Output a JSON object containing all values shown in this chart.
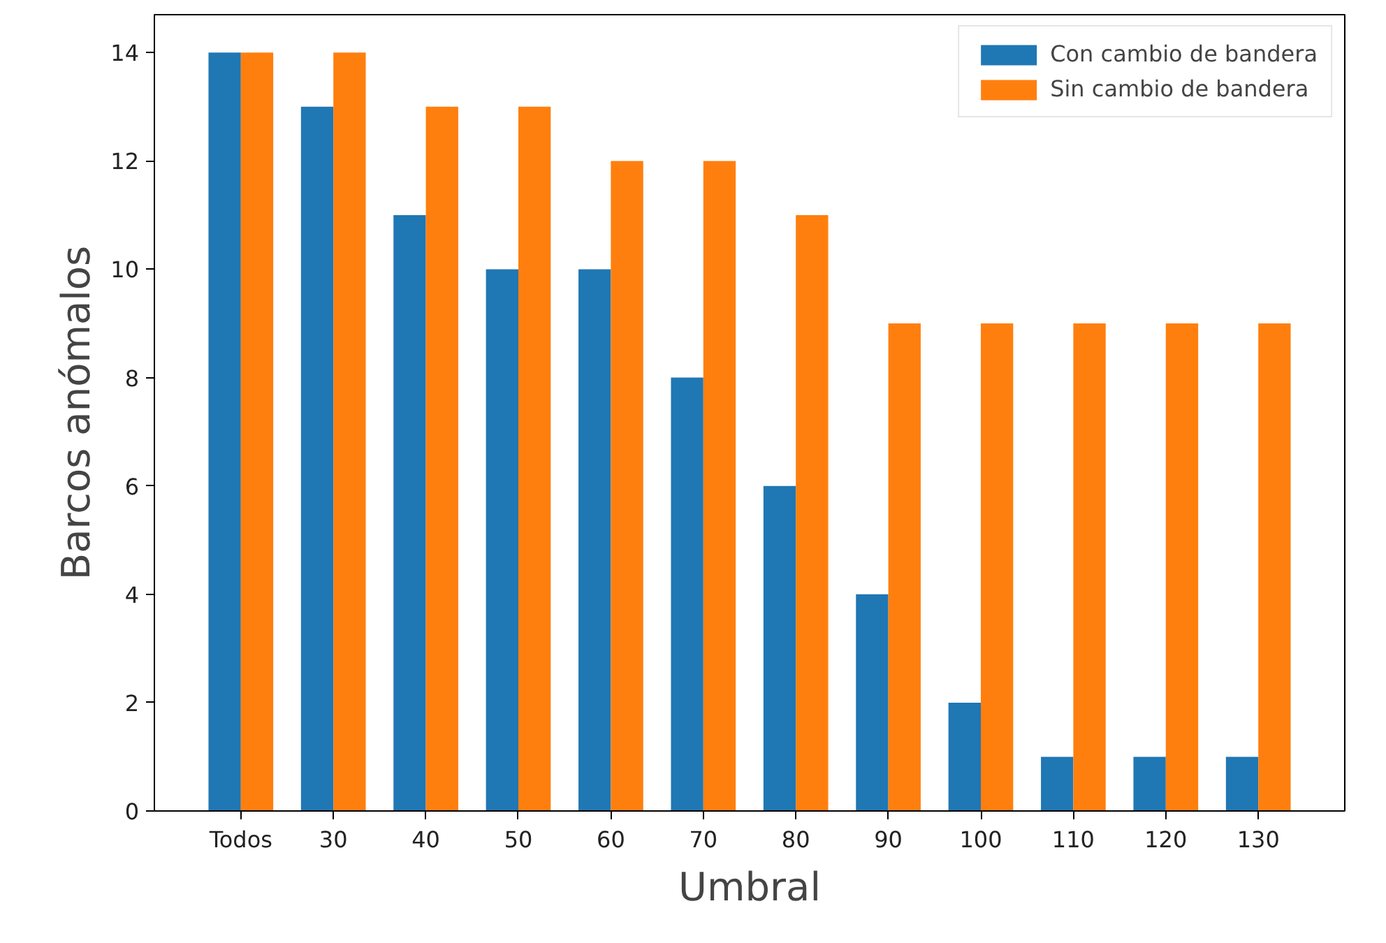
{
  "chart_data": {
    "type": "bar",
    "xlabel": "Umbral",
    "ylabel": "Barcos anómalos",
    "categories": [
      "Todos",
      "30",
      "40",
      "50",
      "60",
      "70",
      "80",
      "90",
      "100",
      "110",
      "120",
      "130"
    ],
    "series": [
      {
        "name": "Con cambio de bandera",
        "color": "#1f77b4",
        "values": [
          14,
          13,
          11,
          10,
          10,
          8,
          6,
          4,
          2,
          1,
          1,
          1
        ]
      },
      {
        "name": "Sin cambio de bandera",
        "color": "#ff7f0e",
        "values": [
          14,
          14,
          13,
          13,
          12,
          12,
          11,
          9,
          9,
          9,
          9,
          9
        ]
      }
    ],
    "ylim": [
      0,
      14.7
    ],
    "yticks": [
      0,
      2,
      4,
      6,
      8,
      10,
      12,
      14
    ],
    "grid": false,
    "legend": "top right"
  }
}
